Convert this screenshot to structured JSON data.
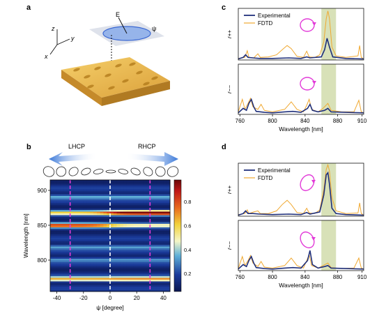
{
  "panels": {
    "a": "a",
    "b": "b",
    "c": "c",
    "d": "d"
  },
  "panel_a": {
    "axis_x": "x",
    "axis_y": "y",
    "axis_z": "z",
    "field_label": "E",
    "angle_label": "ψ"
  },
  "panel_b": {
    "lhcp": "LHCP",
    "rhcp": "RHCP"
  },
  "colors": {
    "experimental": "#1f2f7a",
    "fdtd": "#f0a830",
    "highlight": "#c8d49a",
    "marker": "#e23bd8",
    "gold": "#e7b040"
  },
  "chart_data": [
    {
      "type": "heatmap",
      "id": "b",
      "xlabel": "ψ [degree]",
      "ylabel": "Wavelength [nm]",
      "x_ticks": [
        -40,
        -20,
        0,
        20,
        40
      ],
      "y_ticks": [
        800,
        850,
        900
      ],
      "xlim": [
        -45,
        45
      ],
      "ylim": [
        755,
        915
      ],
      "colorbar": {
        "ticks": [
          0.2,
          0.4,
          0.6,
          0.8
        ],
        "range": [
          0.05,
          0.98
        ]
      },
      "dashed_lines": [
        {
          "x": -30,
          "color": "magenta"
        },
        {
          "x": 0,
          "color": "white"
        },
        {
          "x": 30,
          "color": "magenta"
        }
      ],
      "bands": [
        {
          "wavelength": 867,
          "left": 0.45,
          "right": 0.95
        },
        {
          "wavelength": 849,
          "left": 0.72,
          "right": 0.35
        },
        {
          "wavelength": 772,
          "left": 0.55,
          "right": 0.6
        },
        {
          "wavelength": 890,
          "left": 0.25,
          "right": 0.25
        },
        {
          "wavelength": 818,
          "left": 0.22,
          "right": 0.22
        },
        {
          "wavelength": 800,
          "left": 0.2,
          "right": 0.2
        }
      ]
    },
    {
      "type": "line",
      "id": "c",
      "xlabel": "Wavelength [nm]",
      "x_ticks": [
        760,
        800,
        840,
        880,
        910
      ],
      "xlim": [
        758,
        912
      ],
      "highlight": [
        860,
        878
      ],
      "legend": [
        "Experimental",
        "FDTD"
      ],
      "subplots": [
        {
          "ylabel": "r++",
          "ylim": [
            0,
            1
          ],
          "fdtd": [
            [
              758,
              0.03
            ],
            [
              766,
              0.05
            ],
            [
              769,
              0.18
            ],
            [
              771,
              0.05
            ],
            [
              777,
              0.04
            ],
            [
              782,
              0.12
            ],
            [
              785,
              0.05
            ],
            [
              795,
              0.06
            ],
            [
              805,
              0.1
            ],
            [
              812,
              0.2
            ],
            [
              818,
              0.28
            ],
            [
              823,
              0.22
            ],
            [
              830,
              0.07
            ],
            [
              838,
              0.05
            ],
            [
              842,
              0.17
            ],
            [
              845,
              0.06
            ],
            [
              852,
              0.05
            ],
            [
              858,
              0.1
            ],
            [
              863,
              0.35
            ],
            [
              866,
              0.8
            ],
            [
              868,
              0.95
            ],
            [
              870,
              0.8
            ],
            [
              873,
              0.25
            ],
            [
              878,
              0.08
            ],
            [
              890,
              0.05
            ],
            [
              905,
              0.08
            ],
            [
              907,
              0.28
            ],
            [
              909,
              0.05
            ],
            [
              912,
              0.02
            ]
          ],
          "experimental": [
            [
              758,
              0.02
            ],
            [
              764,
              0.05
            ],
            [
              767,
              0.1
            ],
            [
              770,
              0.05
            ],
            [
              776,
              0.04
            ],
            [
              784,
              0.03
            ],
            [
              800,
              0.03
            ],
            [
              820,
              0.04
            ],
            [
              835,
              0.03
            ],
            [
              842,
              0.06
            ],
            [
              846,
              0.04
            ],
            [
              860,
              0.06
            ],
            [
              864,
              0.2
            ],
            [
              867,
              0.42
            ],
            [
              870,
              0.25
            ],
            [
              874,
              0.06
            ],
            [
              890,
              0.03
            ],
            [
              912,
              0.02
            ]
          ]
        },
        {
          "ylabel": "r−−",
          "ylim": [
            0,
            1
          ],
          "fdtd": [
            [
              758,
              0.05
            ],
            [
              763,
              0.3
            ],
            [
              766,
              0.1
            ],
            [
              770,
              0.22
            ],
            [
              773,
              0.32
            ],
            [
              776,
              0.15
            ],
            [
              782,
              0.1
            ],
            [
              786,
              0.2
            ],
            [
              790,
              0.08
            ],
            [
              800,
              0.05
            ],
            [
              815,
              0.1
            ],
            [
              823,
              0.25
            ],
            [
              830,
              0.1
            ],
            [
              838,
              0.05
            ],
            [
              842,
              0.18
            ],
            [
              845,
              0.3
            ],
            [
              848,
              0.1
            ],
            [
              856,
              0.05
            ],
            [
              862,
              0.12
            ],
            [
              868,
              0.22
            ],
            [
              872,
              0.08
            ],
            [
              885,
              0.05
            ],
            [
              900,
              0.05
            ],
            [
              906,
              0.28
            ],
            [
              909,
              0.05
            ],
            [
              912,
              0.03
            ]
          ],
          "experimental": [
            [
              758,
              0.03
            ],
            [
              764,
              0.12
            ],
            [
              768,
              0.08
            ],
            [
              771,
              0.22
            ],
            [
              774,
              0.3
            ],
            [
              777,
              0.15
            ],
            [
              780,
              0.06
            ],
            [
              790,
              0.04
            ],
            [
              800,
              0.03
            ],
            [
              815,
              0.05
            ],
            [
              825,
              0.06
            ],
            [
              835,
              0.04
            ],
            [
              843,
              0.12
            ],
            [
              846,
              0.2
            ],
            [
              849,
              0.08
            ],
            [
              856,
              0.05
            ],
            [
              864,
              0.08
            ],
            [
              868,
              0.12
            ],
            [
              872,
              0.05
            ],
            [
              890,
              0.04
            ],
            [
              912,
              0.03
            ]
          ]
        }
      ]
    },
    {
      "type": "line",
      "id": "d",
      "xlabel": "Wavelength [nm]",
      "x_ticks": [
        760,
        800,
        840,
        880,
        910
      ],
      "xlim": [
        758,
        912
      ],
      "highlight": [
        860,
        878
      ],
      "legend": [
        "Experimental",
        "FDTD"
      ],
      "subplots": [
        {
          "ylabel": "r++",
          "ylim": [
            0,
            1
          ],
          "fdtd": [
            [
              758,
              0.03
            ],
            [
              766,
              0.05
            ],
            [
              769,
              0.12
            ],
            [
              771,
              0.05
            ],
            [
              777,
              0.08
            ],
            [
              782,
              0.1
            ],
            [
              785,
              0.05
            ],
            [
              795,
              0.05
            ],
            [
              805,
              0.1
            ],
            [
              812,
              0.22
            ],
            [
              818,
              0.3
            ],
            [
              823,
              0.22
            ],
            [
              830,
              0.07
            ],
            [
              838,
              0.05
            ],
            [
              842,
              0.15
            ],
            [
              845,
              0.06
            ],
            [
              852,
              0.05
            ],
            [
              858,
              0.12
            ],
            [
              863,
              0.5
            ],
            [
              866,
              0.88
            ],
            [
              868,
              0.97
            ],
            [
              870,
              0.85
            ],
            [
              873,
              0.35
            ],
            [
              878,
              0.1
            ],
            [
              890,
              0.05
            ],
            [
              905,
              0.06
            ],
            [
              907,
              0.25
            ],
            [
              909,
              0.05
            ],
            [
              912,
              0.02
            ]
          ],
          "experimental": [
            [
              758,
              0.02
            ],
            [
              764,
              0.05
            ],
            [
              767,
              0.1
            ],
            [
              770,
              0.05
            ],
            [
              776,
              0.05
            ],
            [
              784,
              0.04
            ],
            [
              800,
              0.03
            ],
            [
              820,
              0.04
            ],
            [
              835,
              0.03
            ],
            [
              842,
              0.07
            ],
            [
              846,
              0.04
            ],
            [
              858,
              0.08
            ],
            [
              863,
              0.4
            ],
            [
              866,
              0.78
            ],
            [
              868,
              0.82
            ],
            [
              870,
              0.6
            ],
            [
              873,
              0.15
            ],
            [
              878,
              0.05
            ],
            [
              890,
              0.03
            ],
            [
              912,
              0.02
            ]
          ]
        },
        {
          "ylabel": "r−−",
          "ylim": [
            0,
            1
          ],
          "fdtd": [
            [
              758,
              0.04
            ],
            [
              763,
              0.28
            ],
            [
              766,
              0.1
            ],
            [
              770,
              0.2
            ],
            [
              773,
              0.3
            ],
            [
              776,
              0.15
            ],
            [
              782,
              0.08
            ],
            [
              786,
              0.18
            ],
            [
              790,
              0.07
            ],
            [
              800,
              0.05
            ],
            [
              815,
              0.1
            ],
            [
              823,
              0.25
            ],
            [
              830,
              0.1
            ],
            [
              838,
              0.05
            ],
            [
              842,
              0.2
            ],
            [
              845,
              0.32
            ],
            [
              848,
              0.1
            ],
            [
              856,
              0.05
            ],
            [
              862,
              0.1
            ],
            [
              868,
              0.15
            ],
            [
              872,
              0.06
            ],
            [
              885,
              0.04
            ],
            [
              900,
              0.05
            ],
            [
              906,
              0.25
            ],
            [
              909,
              0.05
            ],
            [
              912,
              0.03
            ]
          ],
          "experimental": [
            [
              758,
              0.03
            ],
            [
              764,
              0.12
            ],
            [
              768,
              0.08
            ],
            [
              771,
              0.2
            ],
            [
              774,
              0.28
            ],
            [
              777,
              0.15
            ],
            [
              780,
              0.06
            ],
            [
              790,
              0.04
            ],
            [
              800,
              0.03
            ],
            [
              815,
              0.05
            ],
            [
              825,
              0.06
            ],
            [
              835,
              0.05
            ],
            [
              843,
              0.2
            ],
            [
              846,
              0.4
            ],
            [
              849,
              0.12
            ],
            [
              856,
              0.05
            ],
            [
              864,
              0.08
            ],
            [
              868,
              0.1
            ],
            [
              872,
              0.05
            ],
            [
              890,
              0.04
            ],
            [
              912,
              0.03
            ]
          ]
        }
      ]
    }
  ]
}
